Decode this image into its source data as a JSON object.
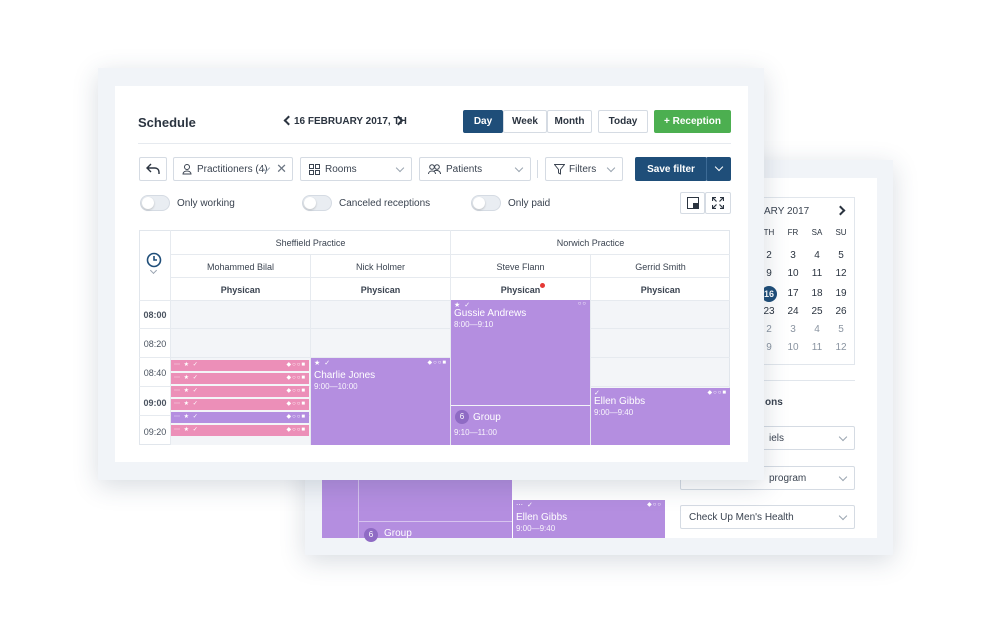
{
  "header": {
    "title": "Schedule",
    "date": "16 FEBRUARY 2017, TH"
  },
  "view_tabs": [
    {
      "label": "Day",
      "active": true
    },
    {
      "label": "Week"
    },
    {
      "label": "Month"
    }
  ],
  "today_label": "Today",
  "reception_label": "+ Reception",
  "filters": {
    "practitioners": "Practitioners (4)",
    "rooms": "Rooms",
    "patients": "Patients",
    "filters": "Filters",
    "save_filter": "Save filter"
  },
  "toggles": {
    "only_working": "Only working",
    "canceled": "Canceled receptions",
    "only_paid": "Only paid"
  },
  "practices": [
    "Sheffield Practice",
    "Norwich Practice"
  ],
  "doctors": [
    "Mohammed Bilal",
    "Nick Holmer",
    "Steve Flann",
    "Gerrid Smith"
  ],
  "roles": [
    "Physican",
    "Physican",
    "Physican",
    "Physican"
  ],
  "times": [
    "08:00",
    "08:20",
    "08:40",
    "09:00",
    "09:20"
  ],
  "events": {
    "gussie": {
      "name": "Gussie Andrews",
      "time": "8:00—9:10"
    },
    "charlie": {
      "name": "Charlie Jones",
      "time": "9:00—10:00"
    },
    "group": {
      "count": "6",
      "name": "Group",
      "time": "9:10—11:00"
    },
    "ellen": {
      "name": "Ellen Gibbs",
      "time": "9:00—9:40"
    }
  },
  "back_panel": {
    "calendar_month": "ARY 2017",
    "weekdays": [
      "TH",
      "FR",
      "SA",
      "SU"
    ],
    "weeks": [
      [
        "2",
        "3",
        "4",
        "5"
      ],
      [
        "9",
        "10",
        "11",
        "12"
      ],
      [
        "16",
        "17",
        "18",
        "19"
      ],
      [
        "23",
        "24",
        "25",
        "26"
      ],
      [
        "2",
        "3",
        "4",
        "5"
      ],
      [
        "9",
        "10",
        "11",
        "12"
      ]
    ],
    "section_title": "ons",
    "selects": [
      "iels",
      "program",
      "Check Up Men's Health"
    ],
    "ellen": {
      "name": "Ellen Gibbs",
      "time": "9:00—9:40"
    },
    "group": {
      "count": "6",
      "name": "Group"
    }
  },
  "colors": {
    "primary": "#1f4e79",
    "accent": "#4caf50",
    "event": "#b48ee0",
    "pink": "#ec8fb8"
  }
}
